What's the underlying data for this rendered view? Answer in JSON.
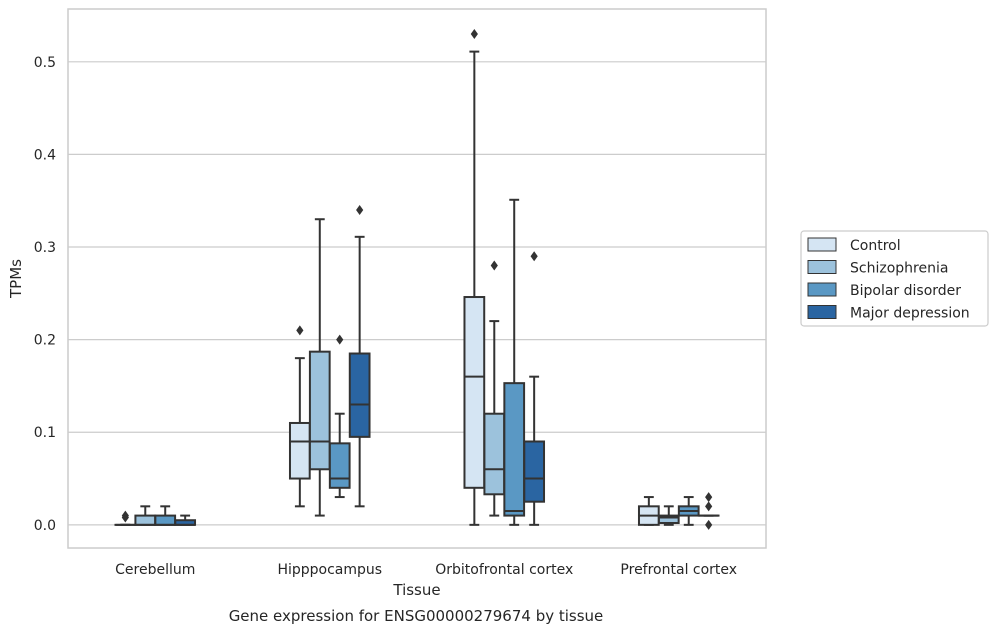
{
  "chart_data": {
    "type": "boxplot",
    "title": "",
    "caption": "Gene expression for ENSG00000279674 by tissue",
    "xlabel": "Tissue",
    "ylabel": "TPMs",
    "ylim": [
      -0.025,
      0.557
    ],
    "yticks": [
      0.0,
      0.1,
      0.2,
      0.3,
      0.4,
      0.5
    ],
    "ytick_labels": [
      "0.0",
      "0.1",
      "0.2",
      "0.3",
      "0.4",
      "0.5"
    ],
    "grid": "horizontal",
    "legend_position": "right",
    "categories": [
      "Cerebellum",
      "Hipppocampus",
      "Orbitofrontal cortex",
      "Prefrontal cortex"
    ],
    "series": [
      {
        "name": "Control",
        "color": "#d5e5f3",
        "boxes": [
          {
            "whislo": 0.0,
            "q1": 0.0,
            "med": 0.0,
            "q3": 0.0,
            "whishi": 0.0,
            "fliers": [
              0.01,
              0.008
            ]
          },
          {
            "whislo": 0.02,
            "q1": 0.05,
            "med": 0.09,
            "q3": 0.11,
            "whishi": 0.18,
            "fliers": [
              0.21
            ]
          },
          {
            "whislo": 0.0,
            "q1": 0.04,
            "med": 0.16,
            "q3": 0.246,
            "whishi": 0.511,
            "fliers": [
              0.53
            ]
          },
          {
            "whislo": 0.0,
            "q1": 0.0,
            "med": 0.01,
            "q3": 0.02,
            "whishi": 0.03,
            "fliers": []
          }
        ]
      },
      {
        "name": "Schizophrenia",
        "color": "#9cc2dc",
        "boxes": [
          {
            "whislo": 0.0,
            "q1": 0.0,
            "med": 0.0,
            "q3": 0.01,
            "whishi": 0.02,
            "fliers": []
          },
          {
            "whislo": 0.01,
            "q1": 0.06,
            "med": 0.09,
            "q3": 0.187,
            "whishi": 0.33,
            "fliers": []
          },
          {
            "whislo": 0.01,
            "q1": 0.033,
            "med": 0.06,
            "q3": 0.12,
            "whishi": 0.22,
            "fliers": [
              0.28
            ]
          },
          {
            "whislo": 0.0,
            "q1": 0.002,
            "med": 0.008,
            "q3": 0.01,
            "whishi": 0.02,
            "fliers": []
          }
        ]
      },
      {
        "name": "Bipolar disorder",
        "color": "#5a98c4",
        "boxes": [
          {
            "whislo": 0.0,
            "q1": 0.0,
            "med": 0.0,
            "q3": 0.01,
            "whishi": 0.02,
            "fliers": []
          },
          {
            "whislo": 0.03,
            "q1": 0.04,
            "med": 0.05,
            "q3": 0.088,
            "whishi": 0.12,
            "fliers": [
              0.2
            ]
          },
          {
            "whislo": 0.0,
            "q1": 0.01,
            "med": 0.015,
            "q3": 0.153,
            "whishi": 0.351,
            "fliers": []
          },
          {
            "whislo": 0.0,
            "q1": 0.01,
            "med": 0.015,
            "q3": 0.02,
            "whishi": 0.03,
            "fliers": []
          }
        ]
      },
      {
        "name": "Major depression",
        "color": "#2a65a2",
        "boxes": [
          {
            "whislo": 0.0,
            "q1": 0.0,
            "med": 0.0,
            "q3": 0.005,
            "whishi": 0.01,
            "fliers": []
          },
          {
            "whislo": 0.02,
            "q1": 0.095,
            "med": 0.13,
            "q3": 0.185,
            "whishi": 0.311,
            "fliers": [
              0.34
            ]
          },
          {
            "whislo": 0.0,
            "q1": 0.025,
            "med": 0.05,
            "q3": 0.09,
            "whishi": 0.16,
            "fliers": [
              0.29
            ]
          },
          {
            "whislo": 0.01,
            "q1": 0.01,
            "med": 0.01,
            "q3": 0.01,
            "whishi": 0.01,
            "fliers": [
              0.03,
              0.02,
              0.0
            ]
          }
        ]
      }
    ]
  }
}
